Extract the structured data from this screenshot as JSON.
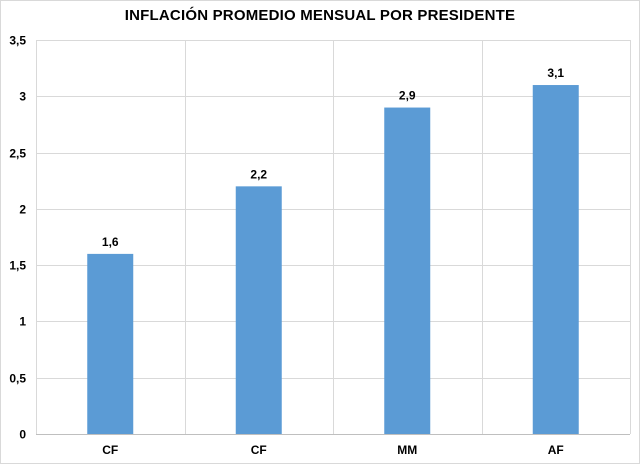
{
  "chart_data": {
    "type": "bar",
    "title": "INFLACIÓN  PROMEDIO MENSUAL  POR PRESIDENTE",
    "categories": [
      "CF",
      "CF",
      "MM",
      "AF"
    ],
    "values": [
      1.6,
      2.2,
      2.9,
      3.1
    ],
    "data_labels": [
      "1,6",
      "2,2",
      "2,9",
      "3,1"
    ],
    "yticks": [
      0,
      0.5,
      1,
      1.5,
      2,
      2.5,
      3,
      3.5
    ],
    "ytick_labels": [
      "0",
      "0,5",
      "1",
      "1,5",
      "2",
      "2,5",
      "3",
      "3,5"
    ],
    "ylim": [
      0,
      3.5
    ],
    "xlabel": "",
    "ylabel": "",
    "grid": true,
    "legend": "none",
    "bar_color": "#5b9bd5",
    "grid_color": "#d9d9d9"
  }
}
